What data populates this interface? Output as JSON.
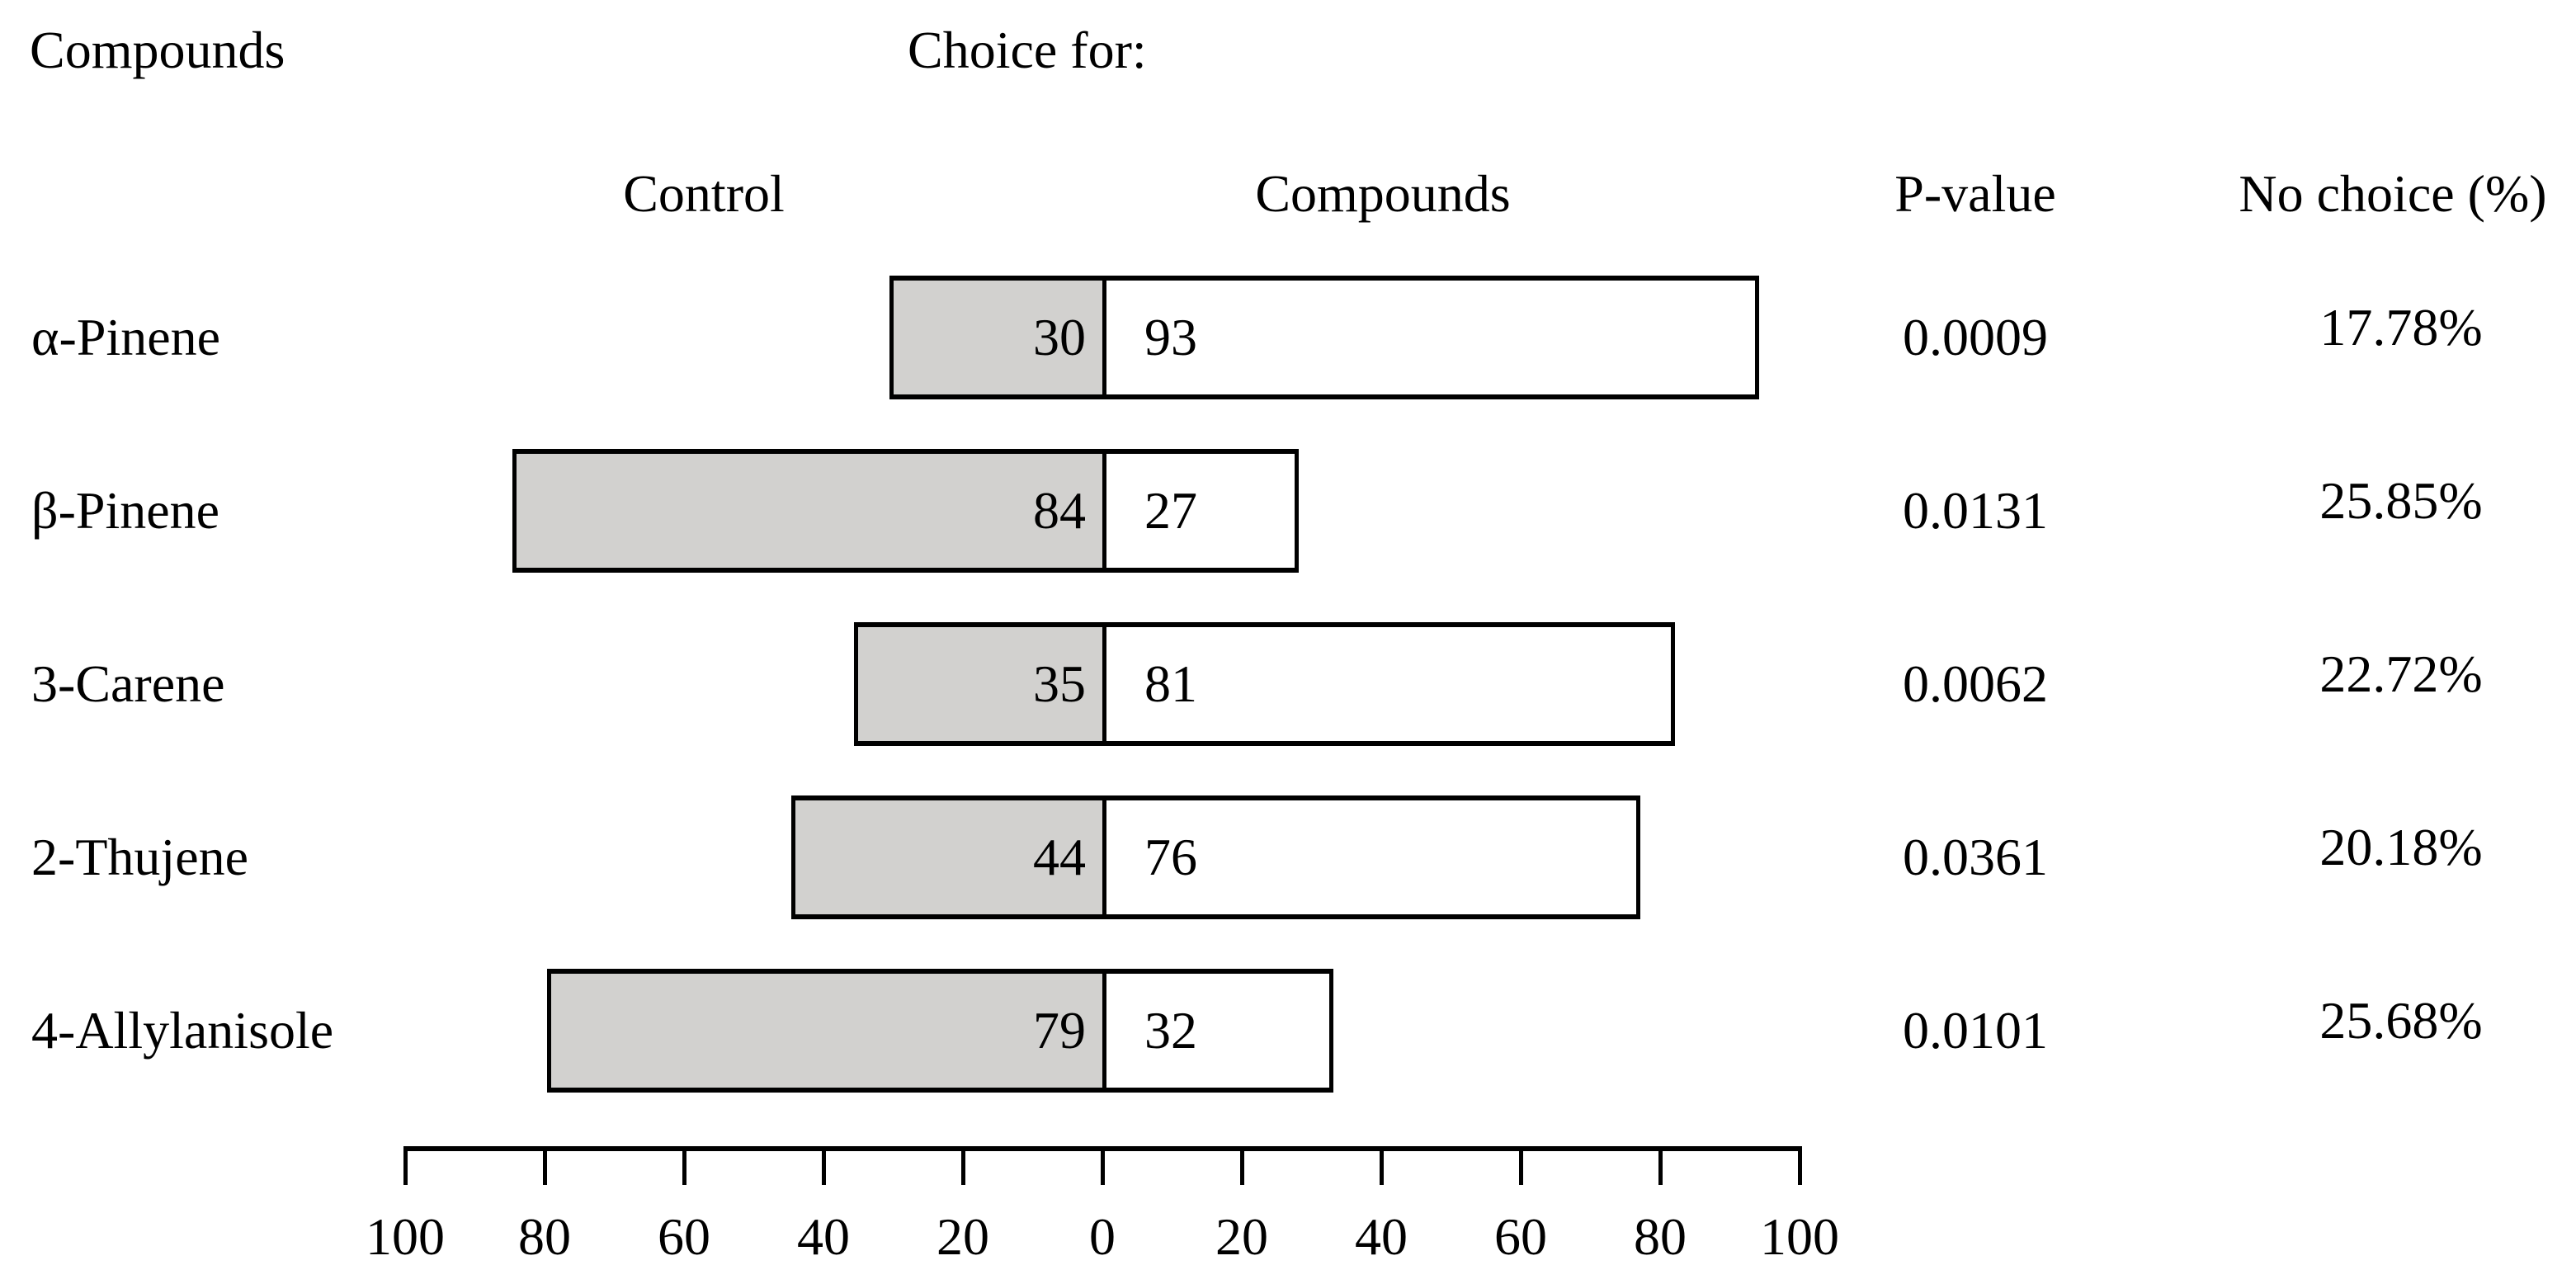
{
  "titles": {
    "compounds_column_title": "Compounds",
    "choice_for_title": "Choice for:"
  },
  "headers": {
    "control": "Control",
    "compounds": "Compounds",
    "p_value": "P-value",
    "no_choice": "No choice (%)"
  },
  "chart_data": {
    "type": "bar",
    "subtype": "diverging-paired-horizontal",
    "title": "Choice for: Control vs Compounds",
    "categories": [
      "α-Pinene",
      "β-Pinene",
      "3-Carene",
      "2-Thujene",
      "4-Allylanisole"
    ],
    "series": [
      {
        "name": "Control",
        "values": [
          30,
          84,
          35,
          44,
          79
        ]
      },
      {
        "name": "Compounds",
        "values": [
          93,
          27,
          81,
          76,
          32
        ]
      }
    ],
    "p_values": [
      "0.0009",
      "0.0131",
      "0.0062",
      "0.0361",
      "0.0101"
    ],
    "no_choice_pct": [
      "17.78%",
      "25.85%",
      "22.72%",
      "20.18%",
      "25.68%"
    ],
    "axis": {
      "tick_labels": [
        "100",
        "80",
        "60",
        "40",
        "20",
        "0",
        "20",
        "40",
        "60",
        "80",
        "100"
      ],
      "tick_values": [
        -100,
        -80,
        -60,
        -40,
        -20,
        0,
        20,
        40,
        60,
        80,
        100
      ],
      "xlim": [
        -100,
        100
      ],
      "grid": false,
      "legend_position": "none"
    },
    "colors": {
      "control_fill": "#d2d1cf",
      "compound_fill": "#ffffff",
      "outline": "#000000",
      "text": "#000000",
      "background": "#ffffff"
    }
  }
}
